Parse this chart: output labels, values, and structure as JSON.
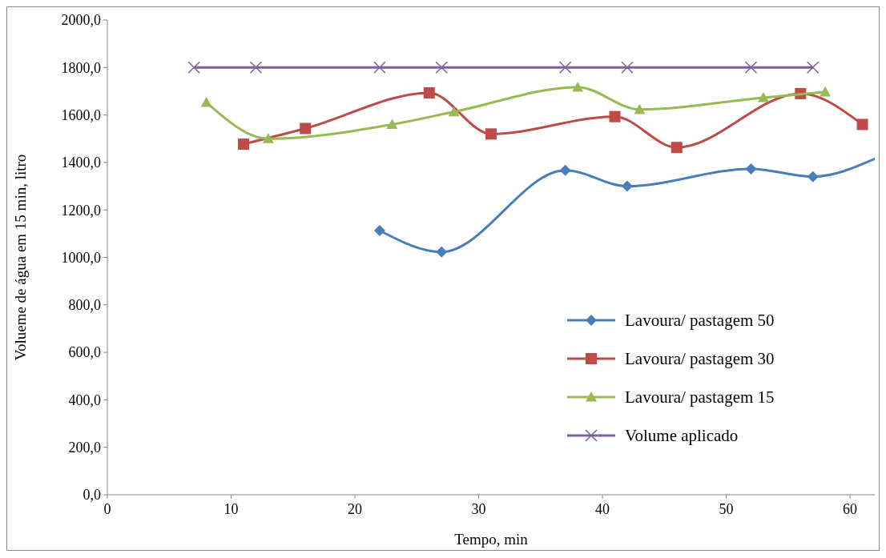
{
  "chart_data": {
    "type": "line",
    "xlabel": "Tempo, min",
    "ylabel": "Volueme de água em 15 min, litro",
    "xlim": [
      0,
      62
    ],
    "xticks": [
      0,
      10,
      20,
      30,
      40,
      50,
      60
    ],
    "ylim": [
      0,
      2000
    ],
    "yticks": [
      {
        "value": 0,
        "label": "0,0"
      },
      {
        "value": 200,
        "label": "200,0"
      },
      {
        "value": 400,
        "label": "400,0"
      },
      {
        "value": 600,
        "label": "600,0"
      },
      {
        "value": 800,
        "label": "800,0"
      },
      {
        "value": 1000,
        "label": "1000,0"
      },
      {
        "value": 1200,
        "label": "1200,0"
      },
      {
        "value": 1400,
        "label": "1400,0"
      },
      {
        "value": 1600,
        "label": "1600,0"
      },
      {
        "value": 1800,
        "label": "1800,0"
      },
      {
        "value": 2000,
        "label": "2000,0"
      }
    ],
    "grid": false,
    "legend": "right",
    "series": [
      {
        "name": "Lavoura/ pastagem 50",
        "color": "#4a7ebb",
        "marker": "diamond",
        "x": [
          22,
          27,
          37,
          42,
          52,
          57,
          62
        ],
        "values": [
          1113,
          1023,
          1367,
          1300,
          1373,
          1340,
          1415
        ]
      },
      {
        "name": "Lavoura/ pastagem 30",
        "color": "#be4b48",
        "marker": "square",
        "x": [
          11,
          16,
          26,
          31,
          41,
          46,
          56,
          61
        ],
        "values": [
          1477,
          1543,
          1693,
          1520,
          1593,
          1463,
          1690,
          1560
        ]
      },
      {
        "name": "Lavoura/ pastagem 15",
        "color": "#98b954",
        "marker": "triangle",
        "x": [
          8,
          13,
          23,
          28,
          38,
          43,
          53,
          58
        ],
        "values": [
          1653,
          1500,
          1560,
          1613,
          1717,
          1623,
          1673,
          1697
        ]
      },
      {
        "name": "Volume aplicado",
        "color": "#7d60a0",
        "marker": "cross",
        "x": [
          7,
          12,
          22,
          27,
          37,
          42,
          52,
          57
        ],
        "values": [
          1800,
          1800,
          1800,
          1800,
          1800,
          1800,
          1800,
          1800
        ]
      }
    ]
  }
}
